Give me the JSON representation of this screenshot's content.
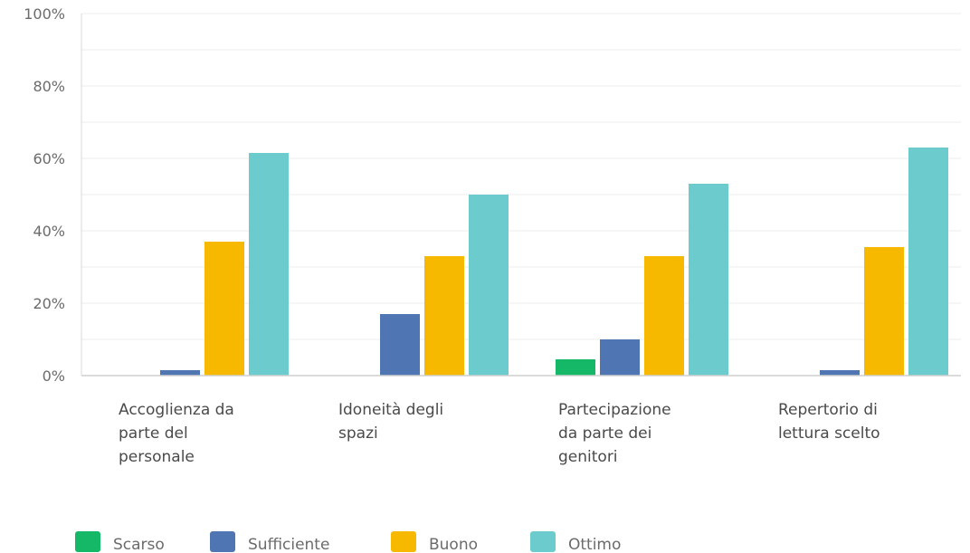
{
  "chart_data": {
    "type": "bar",
    "categories": [
      [
        "Accoglienza da",
        "parte del",
        "personale"
      ],
      [
        "Idoneità degli",
        "spazi"
      ],
      [
        "Partecipazione",
        "da parte dei",
        "genitori"
      ],
      [
        "Repertorio di",
        "lettura scelto"
      ]
    ],
    "series": [
      {
        "name": "Scarso",
        "color": "#14b866",
        "values": [
          0,
          0,
          4.5,
          0
        ]
      },
      {
        "name": "Sufficiente",
        "color": "#4f76b3",
        "values": [
          1.5,
          17,
          10,
          1.5
        ]
      },
      {
        "name": "Buono",
        "color": "#f7b900",
        "values": [
          37,
          33,
          33,
          35.5
        ]
      },
      {
        "name": "Ottimo",
        "color": "#6ccbcc",
        "values": [
          61.5,
          50,
          53,
          63
        ]
      }
    ],
    "ylim": [
      0,
      100
    ],
    "yticks": [
      "0%",
      "20%",
      "40%",
      "60%",
      "80%",
      "100%"
    ],
    "grid": true,
    "legend": "bottom-left"
  }
}
